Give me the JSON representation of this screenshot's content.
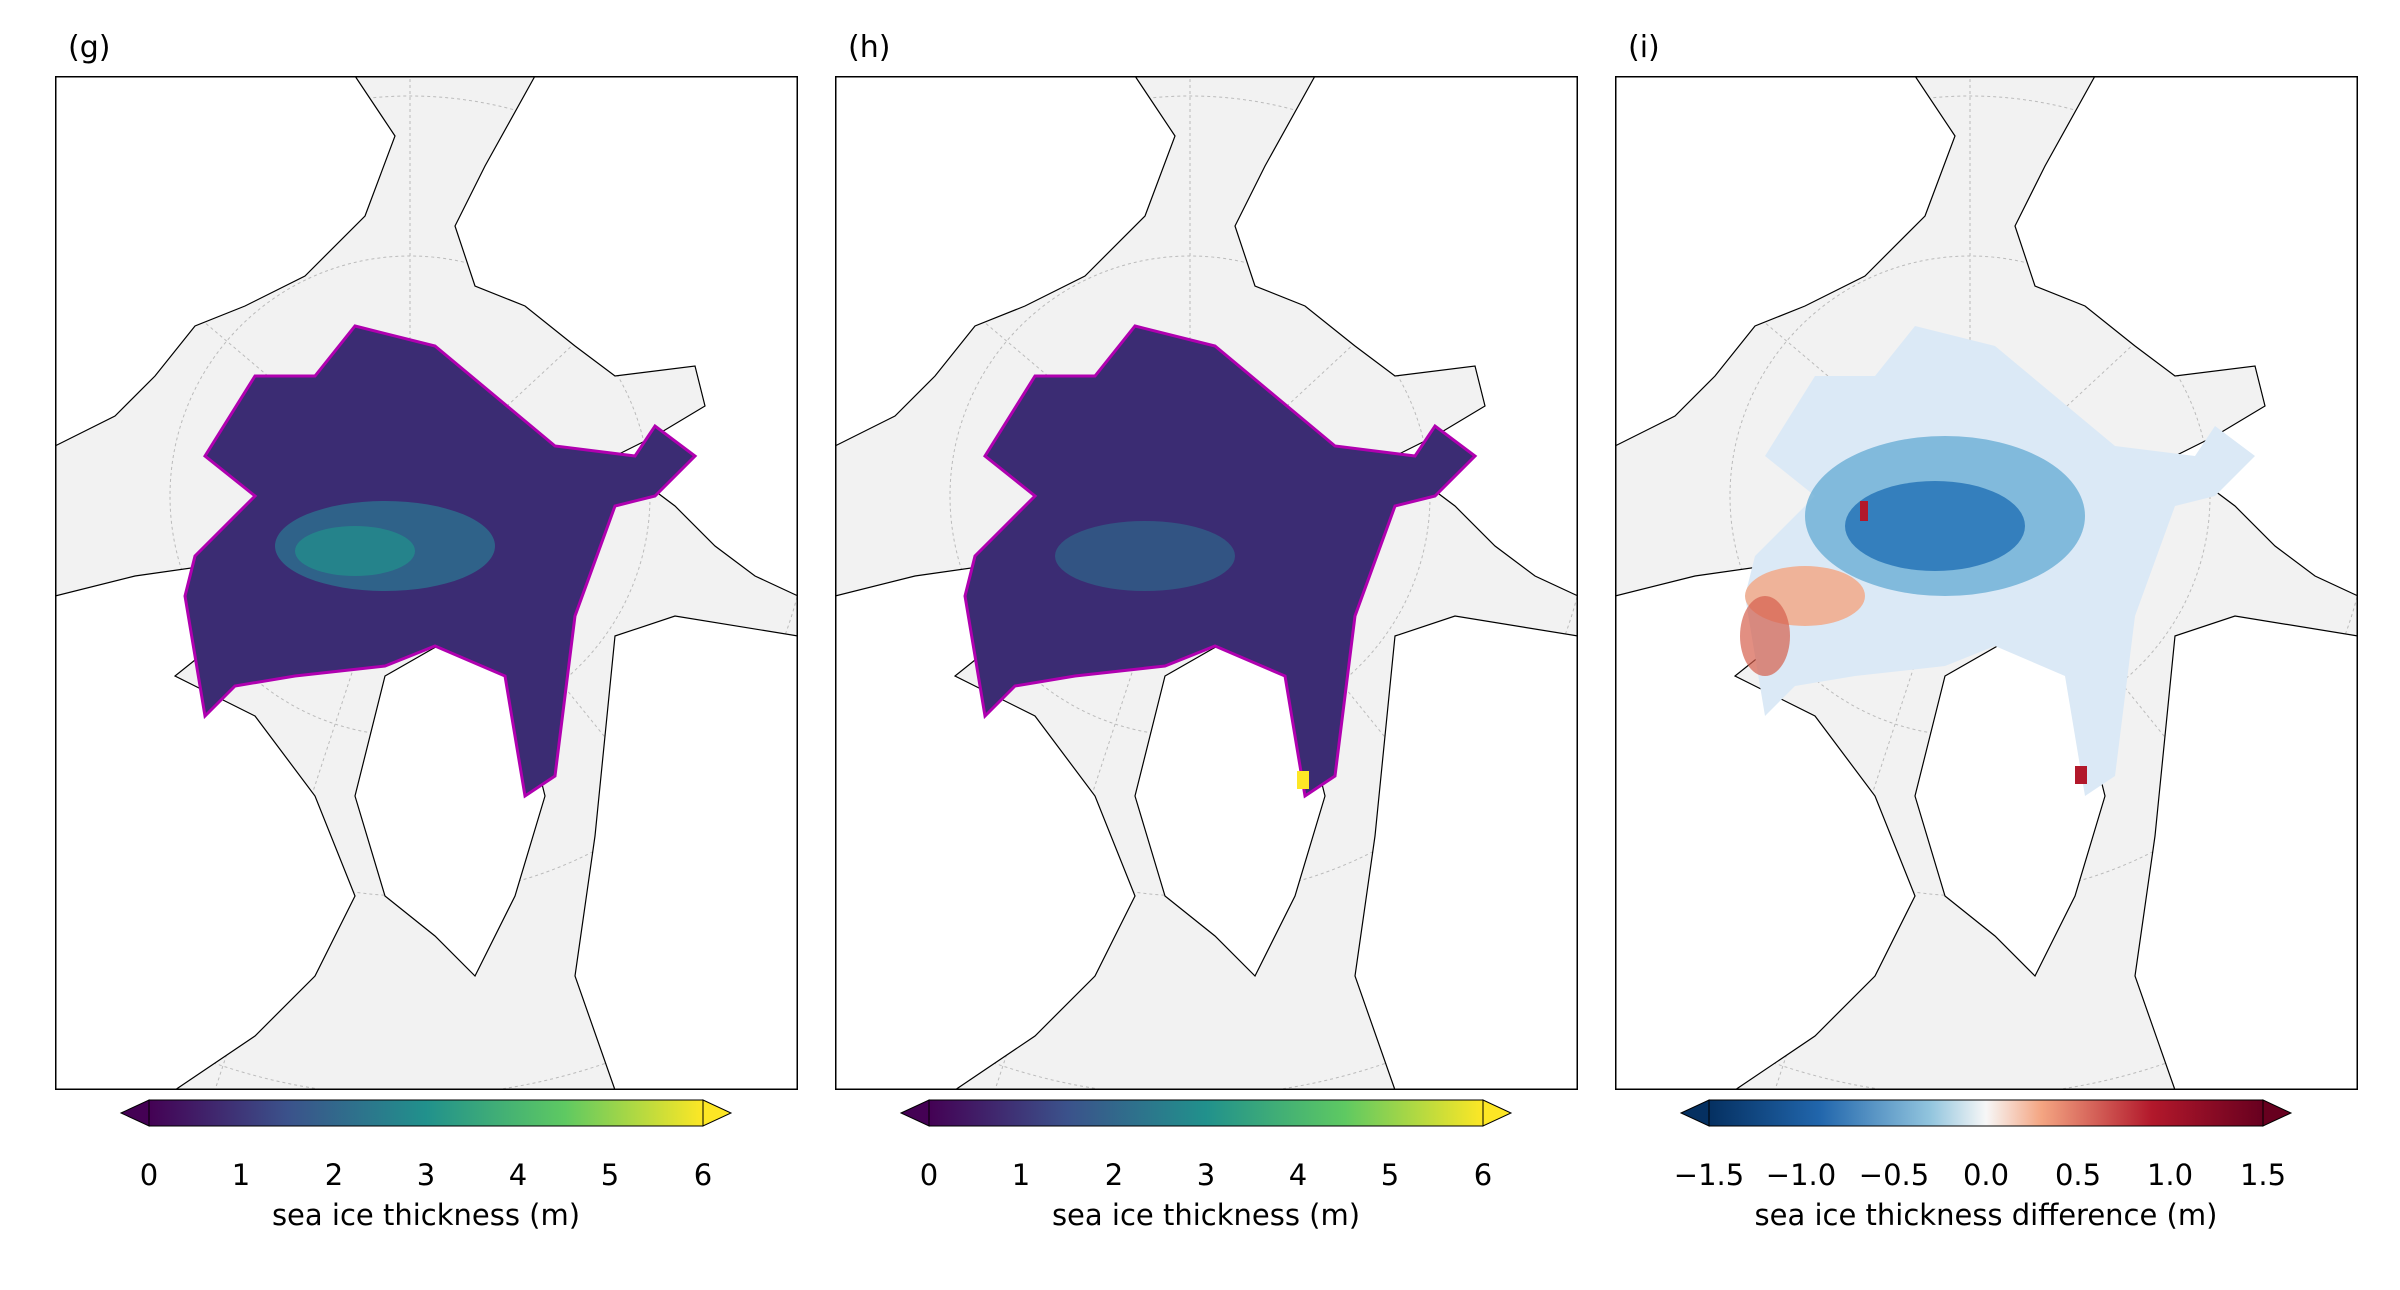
{
  "panels": [
    {
      "label": "(g)",
      "colormap": "viridis",
      "colorbar": {
        "ticks": [
          "0",
          "1",
          "2",
          "3",
          "4",
          "5",
          "6"
        ],
        "min": 0,
        "max": 6,
        "extend": "both",
        "label": "sea ice thickness (m)"
      }
    },
    {
      "label": "(h)",
      "colormap": "viridis",
      "colorbar": {
        "ticks": [
          "0",
          "1",
          "2",
          "3",
          "4",
          "5",
          "6"
        ],
        "min": 0,
        "max": 6,
        "extend": "both",
        "label": "sea ice thickness (m)"
      }
    },
    {
      "label": "(i)",
      "colormap": "RdBu_r",
      "colorbar": {
        "ticks": [
          "−1.5",
          "−1.0",
          "−0.5",
          "0.0",
          "0.5",
          "1.0",
          "1.5"
        ],
        "min": -1.5,
        "max": 1.5,
        "extend": "both",
        "label": "sea ice thickness difference (m)"
      }
    }
  ],
  "colors": {
    "ocean_background": "#f2f2f2",
    "land": "#ffffff",
    "ice_edge_contour": "#b000b0",
    "coastline": "#000000",
    "graticule": "#bbbbbb"
  },
  "projection": "north-polar-stereographic",
  "gridlines": true
}
